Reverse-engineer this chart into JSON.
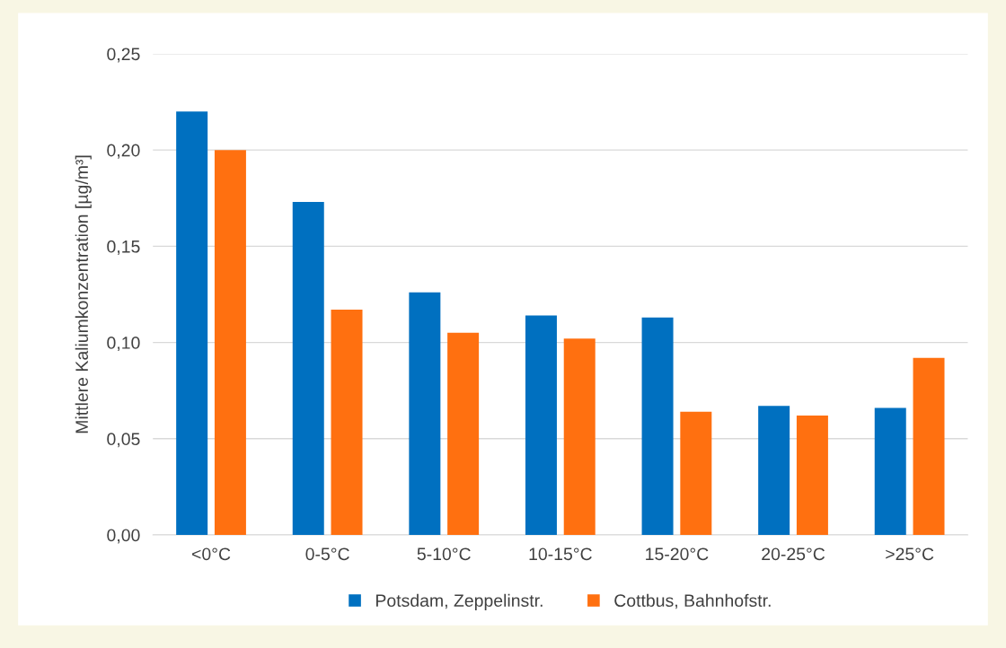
{
  "chart_data": {
    "type": "bar",
    "ylabel": "Mittlere Kaliumkonzentration [µg/m³]",
    "categories": [
      "<0°C",
      "0-5°C",
      "5-10°C",
      "10-15°C",
      "15-20°C",
      "20-25°C",
      ">25°C"
    ],
    "series": [
      {
        "name": "Potsdam, Zeppelinstr.",
        "color": "#0070c0",
        "values": [
          0.22,
          0.173,
          0.126,
          0.114,
          0.113,
          0.067,
          0.066
        ]
      },
      {
        "name": "Cottbus, Bahnhofstr.",
        "color": "#ff7010",
        "values": [
          0.2,
          0.117,
          0.105,
          0.102,
          0.064,
          0.062,
          0.092
        ]
      }
    ],
    "ylim": [
      0,
      0.25
    ],
    "yticks": [
      {
        "value": 0,
        "label": "0,00"
      },
      {
        "value": 0.05,
        "label": "0,05"
      },
      {
        "value": 0.1,
        "label": "0,10"
      },
      {
        "value": 0.15,
        "label": "0,15"
      },
      {
        "value": 0.2,
        "label": "0,20"
      },
      {
        "value": 0.25,
        "label": "0,25"
      }
    ],
    "grid": "y",
    "legend": "bottom"
  }
}
